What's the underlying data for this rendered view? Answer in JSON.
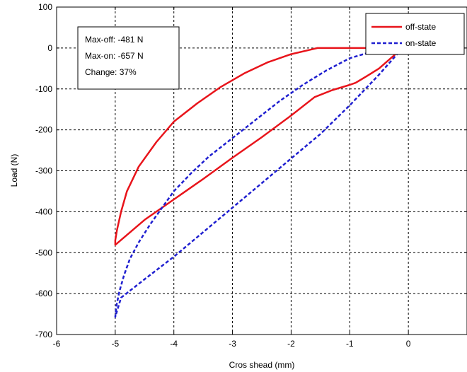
{
  "chart_data": {
    "type": "line",
    "title": "",
    "xlabel": "Cros shead (mm)",
    "ylabel": "Load (N)",
    "xlim": [
      -6,
      1
    ],
    "ylim": [
      -700,
      100
    ],
    "xticks": [
      -6,
      -5,
      -4,
      -3,
      -2,
      -1,
      0
    ],
    "yticks": [
      100,
      0,
      -100,
      -200,
      -300,
      -400,
      -500,
      -600,
      -700
    ],
    "grid": true,
    "legend_position": "top-right",
    "annotation": [
      "Max-off: -481 N",
      "Max-on: -657 N",
      "Change: 37%"
    ],
    "series": [
      {
        "name": "off-state",
        "color": "#e8141b",
        "style": "solid",
        "x": [
          -0.1,
          -0.3,
          -0.5,
          -0.7,
          -0.9,
          -1.0,
          -1.3,
          -1.6,
          -2.0,
          -2.5,
          -3.0,
          -3.5,
          -4.0,
          -4.5,
          -5.0,
          -5.0,
          -4.97,
          -4.9,
          -4.8,
          -4.6,
          -4.3,
          -4.0,
          -3.6,
          -3.2,
          -2.8,
          -2.4,
          -2.0,
          -1.7,
          -1.55,
          -1.2,
          -0.8,
          -0.4,
          -0.1
        ],
        "y": [
          0,
          -25,
          -50,
          -68,
          -85,
          -90,
          -103,
          -120,
          -165,
          -218,
          -268,
          -320,
          -370,
          -420,
          -481,
          -470,
          -445,
          -400,
          -350,
          -290,
          -230,
          -180,
          -135,
          -95,
          -62,
          -35,
          -15,
          -5,
          0,
          0,
          0,
          0,
          0
        ]
      },
      {
        "name": "on-state",
        "color": "#1f1fd0",
        "style": "dashed",
        "x": [
          -0.1,
          -0.5,
          -1.0,
          -1.5,
          -2.0,
          -2.5,
          -3.0,
          -3.5,
          -4.0,
          -4.5,
          -4.9,
          -5.0,
          -4.98,
          -4.93,
          -4.85,
          -4.75,
          -4.6,
          -4.4,
          -4.2,
          -4.0,
          -3.7,
          -3.4,
          -3.0,
          -2.6,
          -2.2,
          -1.8,
          -1.4,
          -1.0,
          -0.6,
          -0.3,
          -0.1
        ],
        "y": [
          0,
          -65,
          -140,
          -210,
          -270,
          -330,
          -390,
          -450,
          -510,
          -565,
          -610,
          -657,
          -630,
          -595,
          -555,
          -515,
          -475,
          -430,
          -390,
          -350,
          -305,
          -265,
          -220,
          -175,
          -130,
          -90,
          -55,
          -25,
          -8,
          -2,
          0
        ]
      }
    ]
  }
}
